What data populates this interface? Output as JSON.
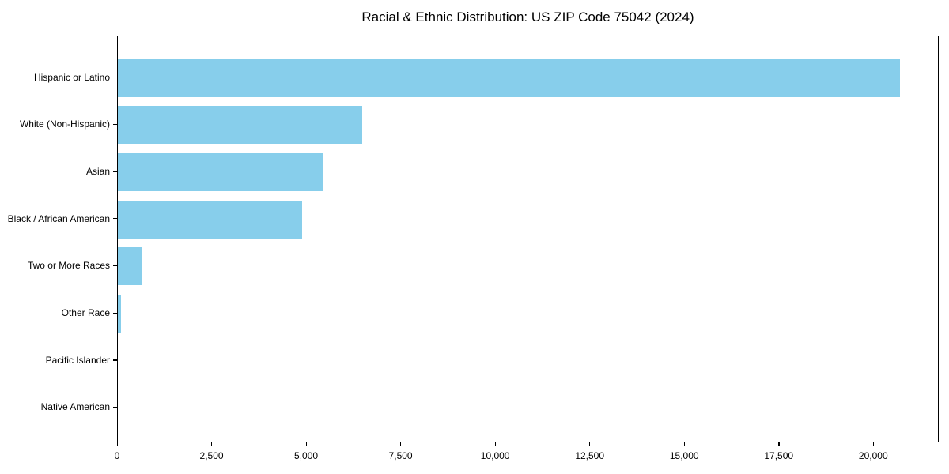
{
  "chart_data": {
    "type": "bar",
    "orientation": "horizontal",
    "title": "Racial & Ethnic Distribution: US ZIP Code 75042 (2024)",
    "categories": [
      "Hispanic or Latino",
      "White (Non-Hispanic)",
      "Asian",
      "Black / African American",
      "Two or More Races",
      "Other Race",
      "Pacific Islander",
      "Native American"
    ],
    "values": [
      20690,
      6470,
      5410,
      4880,
      630,
      90,
      0,
      0
    ],
    "xlabel": "",
    "ylabel": "",
    "xlim": [
      0,
      21730
    ],
    "x_ticks": [
      0,
      2500,
      5000,
      7500,
      10000,
      12500,
      15000,
      17500,
      20000
    ],
    "x_tick_labels": [
      "0",
      "2,500",
      "5,000",
      "7,500",
      "10,000",
      "12,500",
      "15,000",
      "17,500",
      "20,000"
    ],
    "bar_color": "#87CEEB",
    "spine_color": "#000000",
    "text_color": "#000000",
    "grid": false,
    "legend": null
  }
}
